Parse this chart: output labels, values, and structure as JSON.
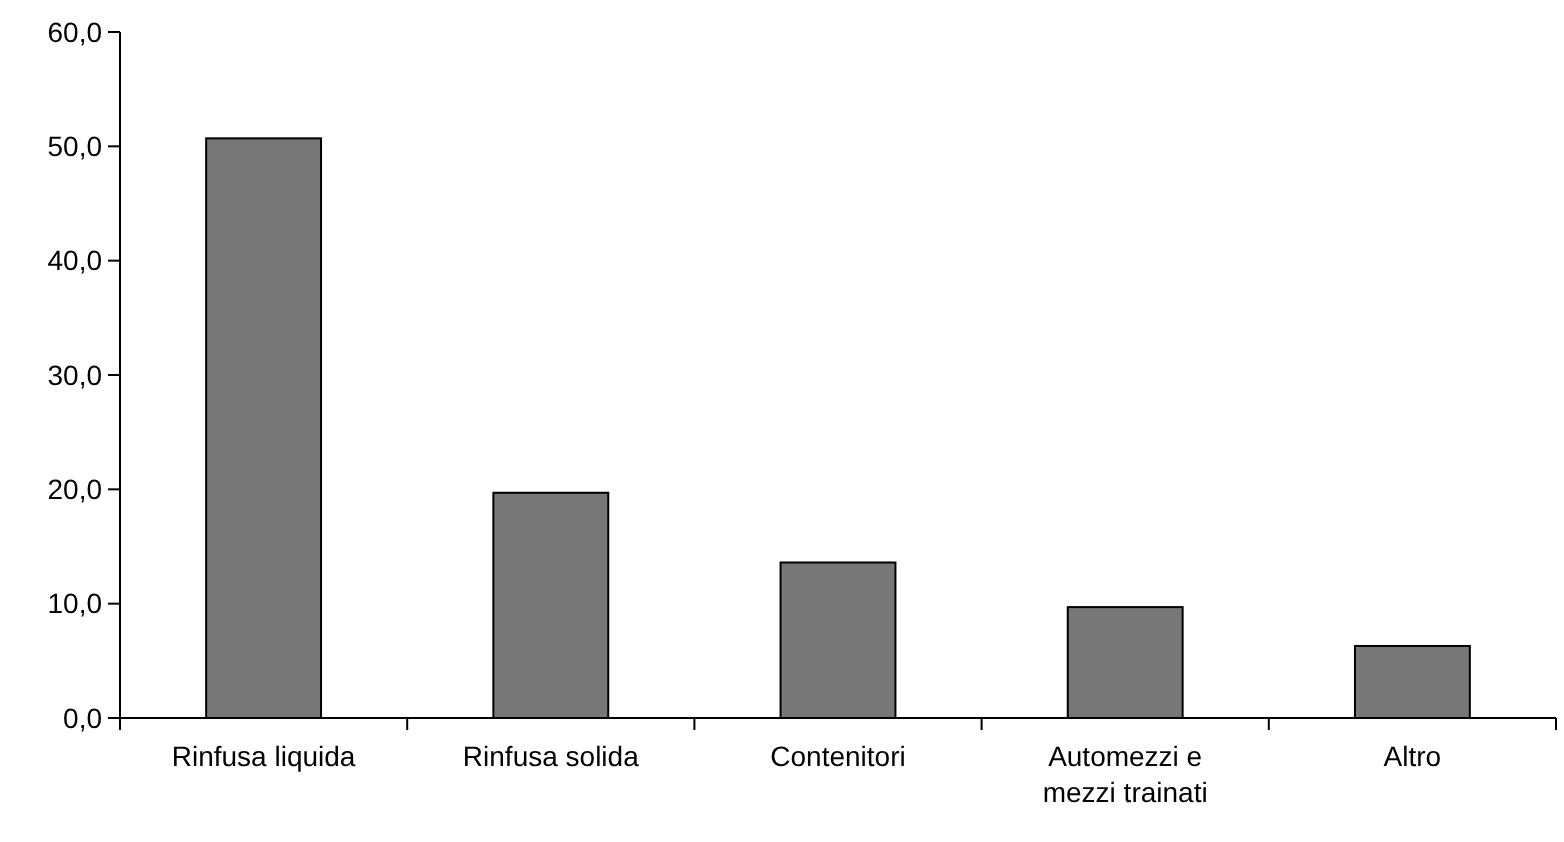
{
  "chart_data": {
    "type": "bar",
    "categories": [
      "Rinfusa liquida",
      "Rinfusa solida",
      "Contenitori",
      "Automezzi e mezzi trainati",
      "Altro"
    ],
    "values": [
      50.7,
      19.7,
      13.6,
      9.7,
      6.3
    ],
    "color": "#777777",
    "ylim": [
      0,
      60
    ],
    "yticks": [
      {
        "value": 0,
        "label": "0,0"
      },
      {
        "value": 10,
        "label": "10,0"
      },
      {
        "value": 20,
        "label": "20,0"
      },
      {
        "value": 30,
        "label": "30,0"
      },
      {
        "value": 40,
        "label": "40,0"
      },
      {
        "value": 50,
        "label": "50,0"
      },
      {
        "value": 60,
        "label": "60,0"
      }
    ],
    "grid": false
  }
}
